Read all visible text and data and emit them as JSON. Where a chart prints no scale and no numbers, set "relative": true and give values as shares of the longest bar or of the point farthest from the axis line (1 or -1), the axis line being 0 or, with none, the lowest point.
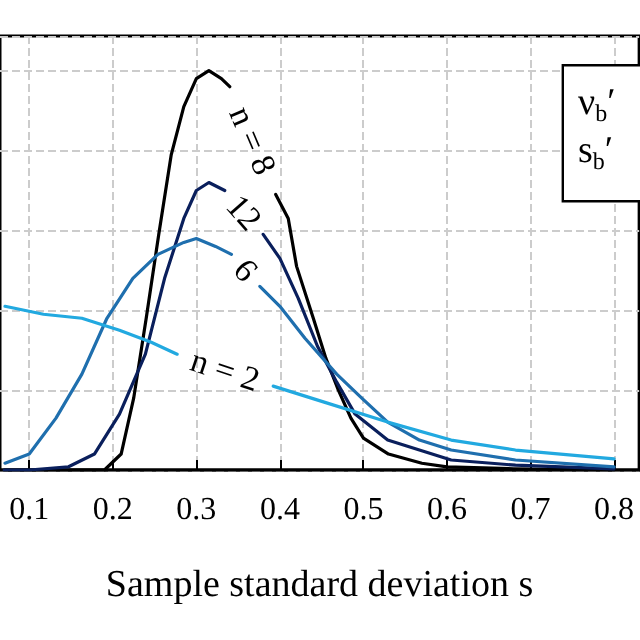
{
  "chart_data": {
    "type": "line",
    "relative": true,
    "xlabel": "Sample standard deviation s",
    "xlim": [
      0.065,
      0.83
    ],
    "xticks": [
      0.1,
      0.2,
      0.3,
      0.4,
      0.5,
      0.6,
      0.7,
      0.8
    ],
    "grid": true,
    "legend": false,
    "marker": "none",
    "line_style": "solid",
    "annotations": [
      "ν$_{b}$′",
      "s$_{b}$′"
    ],
    "series": [
      {
        "name": "n = 8",
        "color": "#000000",
        "x": [
          0.07,
          0.19,
          0.21,
          0.225,
          0.24,
          0.255,
          0.27,
          0.285,
          0.3,
          0.315,
          0.33,
          0.34,
          0.37,
          0.395,
          0.41,
          0.42,
          0.44,
          0.455,
          0.47,
          0.485,
          0.5,
          0.53,
          0.57,
          0.6,
          0.68,
          0.8
        ],
        "values": [
          0,
          0,
          0.04,
          0.18,
          0.38,
          0.59,
          0.79,
          0.91,
          0.98,
          1,
          0.98,
          0.96,
          null,
          0.69,
          0.63,
          0.51,
          0.38,
          0.28,
          0.2,
          0.13,
          0.08,
          0.04,
          0.017,
          0.008,
          0.003,
          0
        ]
      },
      {
        "name": "12",
        "color": "#0a1f5c",
        "x": [
          0.07,
          0.1,
          0.147,
          0.178,
          0.208,
          0.239,
          0.262,
          0.285,
          0.3,
          0.315,
          0.334,
          0.36,
          0.38,
          0.4,
          0.422,
          0.445,
          0.468,
          0.49,
          0.529,
          0.605,
          0.682,
          0.8
        ],
        "values": [
          0,
          0,
          0.008,
          0.04,
          0.14,
          0.29,
          0.48,
          0.63,
          0.7,
          0.72,
          0.7,
          null,
          0.59,
          0.53,
          0.43,
          0.31,
          0.22,
          0.14,
          0.075,
          0.025,
          0.012,
          0.003
        ]
      },
      {
        "name": "6",
        "color": "#1f6fae",
        "x": [
          0.071,
          0.1,
          0.132,
          0.163,
          0.193,
          0.224,
          0.254,
          0.285,
          0.3,
          0.323,
          0.342,
          0.36,
          0.376,
          0.4,
          0.43,
          0.468,
          0.498,
          0.529,
          0.567,
          0.605,
          0.682,
          0.8
        ],
        "values": [
          0.017,
          0.04,
          0.13,
          0.24,
          0.38,
          0.48,
          0.54,
          0.57,
          0.58,
          0.56,
          0.54,
          null,
          0.46,
          0.41,
          0.33,
          0.24,
          0.18,
          0.12,
          0.075,
          0.05,
          0.025,
          0.008
        ]
      },
      {
        "name": "n = 2",
        "color": "#22a9e0",
        "x": [
          0.071,
          0.117,
          0.163,
          0.208,
          0.246,
          0.277,
          0.33,
          0.392,
          0.453,
          0.529,
          0.605,
          0.682,
          0.8
        ],
        "values": [
          0.41,
          0.39,
          0.38,
          0.35,
          0.32,
          0.29,
          null,
          0.21,
          0.17,
          0.12,
          0.075,
          0.05,
          0.028
        ]
      }
    ]
  }
}
